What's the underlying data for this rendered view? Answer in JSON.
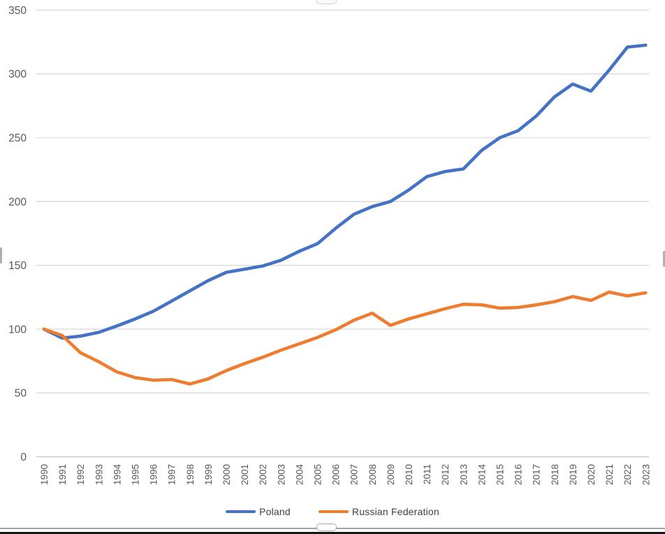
{
  "chart_data": {
    "type": "line",
    "title": "",
    "xlabel": "",
    "ylabel": "",
    "x": [
      1990,
      1991,
      1992,
      1993,
      1994,
      1995,
      1996,
      1997,
      1998,
      1999,
      2000,
      2001,
      2002,
      2003,
      2004,
      2005,
      2006,
      2007,
      2008,
      2009,
      2010,
      2011,
      2012,
      2013,
      2014,
      2015,
      2016,
      2017,
      2018,
      2019,
      2020,
      2021,
      2022,
      2023
    ],
    "series": [
      {
        "name": "Poland",
        "color": "#4472C4",
        "values": [
          100,
          93,
          94.5,
          97.5,
          102.5,
          108,
          114,
          122,
          130,
          138,
          144.5,
          147,
          149.5,
          154,
          161,
          167,
          179,
          190,
          196,
          200,
          209,
          219.5,
          223.5,
          225.5,
          240,
          250,
          255.5,
          267,
          282,
          292,
          286.5,
          303,
          321,
          322.5
        ]
      },
      {
        "name": "Russian Federation",
        "color": "#ED7D31",
        "values": [
          100,
          95,
          81.5,
          74.5,
          66.5,
          62,
          60,
          60.5,
          57,
          61,
          67.5,
          73,
          78,
          83.5,
          88.5,
          93.5,
          99.5,
          107,
          112.5,
          103,
          108,
          112,
          116,
          119.5,
          119,
          116.5,
          117,
          119,
          121.5,
          125.5,
          122.5,
          129,
          126,
          128.5
        ]
      }
    ],
    "ylim": [
      0,
      350
    ],
    "yticks": [
      0,
      50,
      100,
      150,
      200,
      250,
      300,
      350
    ],
    "grid": true,
    "legend_position": "bottom",
    "gridline_color": "#D9D9D9",
    "baseline_color": "#C3C3C3",
    "axis_label_color": "#595959",
    "legend_text_color": "#404040"
  }
}
